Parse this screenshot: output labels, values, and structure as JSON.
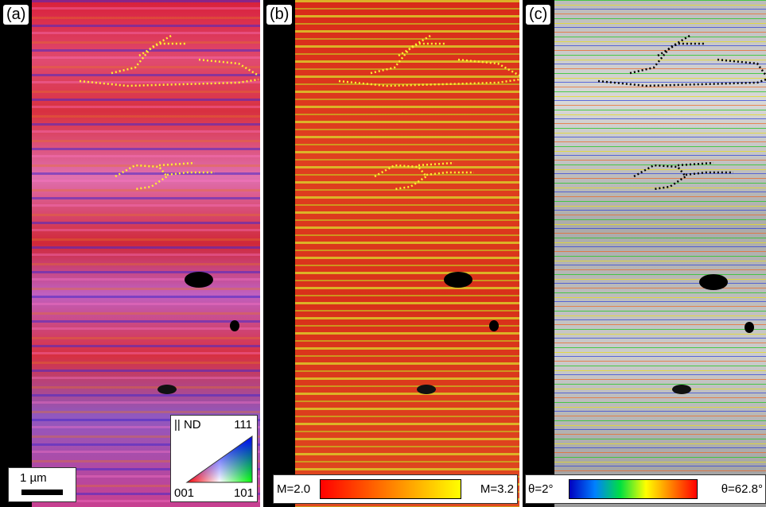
{
  "panels": [
    {
      "label": "(a)"
    },
    {
      "label": "(b)"
    },
    {
      "label": "(c)"
    }
  ],
  "ipf_legend": {
    "title": "|| ND",
    "corners": [
      "001",
      "101",
      "111"
    ]
  },
  "scale_bar": {
    "label": "1 µm"
  },
  "colorbar_m": {
    "min_label": "M=2.0",
    "max_label": "M=3.2"
  },
  "colorbar_theta": {
    "min_label": "θ=2°",
    "max_label": "θ=62.8°"
  }
}
